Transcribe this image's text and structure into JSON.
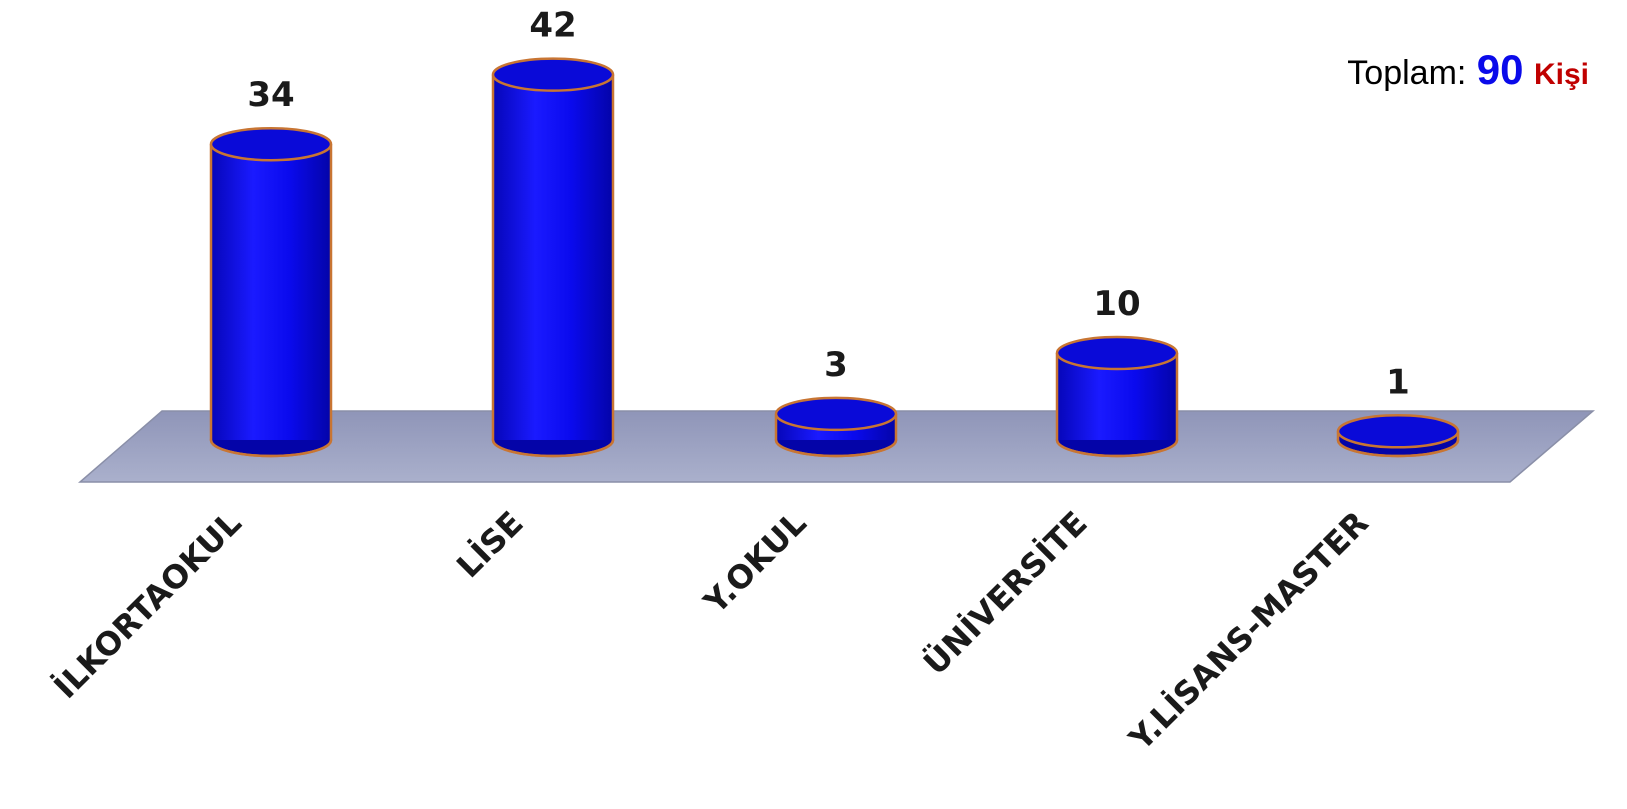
{
  "total": {
    "label": "Toplam:",
    "value": "90",
    "unit": "Kişi"
  },
  "chart_data": {
    "type": "bar",
    "categories": [
      "İLKORTAOKUL",
      "LİSE",
      "Y.OKUL",
      "ÜNİVERSİTE",
      "Y.LİSANS-MASTER"
    ],
    "values": [
      34,
      42,
      3,
      10,
      1
    ],
    "title": "",
    "xlabel": "",
    "ylabel": "",
    "ylim": [
      0,
      42
    ],
    "grid": false,
    "legend": "none",
    "colors": {
      "bar": "#0a0aee",
      "bar_edge": "#c87533",
      "floor": "#a2a8c6"
    }
  }
}
